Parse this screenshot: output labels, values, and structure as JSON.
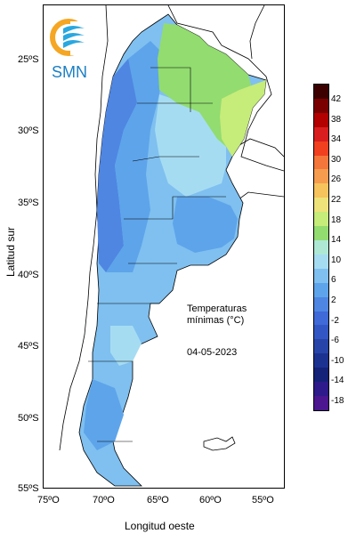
{
  "logo": {
    "text": "SMN"
  },
  "annotation": {
    "title_line1": "Temperaturas",
    "title_line2": "mínimas (°C)",
    "date": "04-05-2023"
  },
  "axes": {
    "x_title": "Longitud oeste",
    "y_title": "Latitud sur",
    "lat_ticks": [
      "25ºS",
      "30ºS",
      "35ºS",
      "40ºS",
      "45ºS",
      "50ºS",
      "55ºS"
    ],
    "lon_ticks": [
      "75ºO",
      "70ºO",
      "65ºO",
      "60ºO",
      "55ºO"
    ]
  },
  "legend": {
    "labels": [
      "42",
      "38",
      "34",
      "30",
      "26",
      "22",
      "18",
      "14",
      "10",
      "6",
      "2",
      "-2",
      "-6",
      "-10",
      "-14",
      "-18"
    ],
    "colors": [
      "#3d0000",
      "#7a0000",
      "#b30000",
      "#d81e1e",
      "#f04020",
      "#f4763a",
      "#f59c4e",
      "#f7c35c",
      "#eee27a",
      "#c6ec7a",
      "#92dc70",
      "#aee8d4",
      "#a6dcf2",
      "#7fc0f0",
      "#5ea4ea",
      "#4f86e2",
      "#3f6ad8",
      "#3257c4",
      "#2745a8",
      "#1c3290",
      "#142278",
      "#2e1a8a",
      "#4b1690"
    ]
  }
}
